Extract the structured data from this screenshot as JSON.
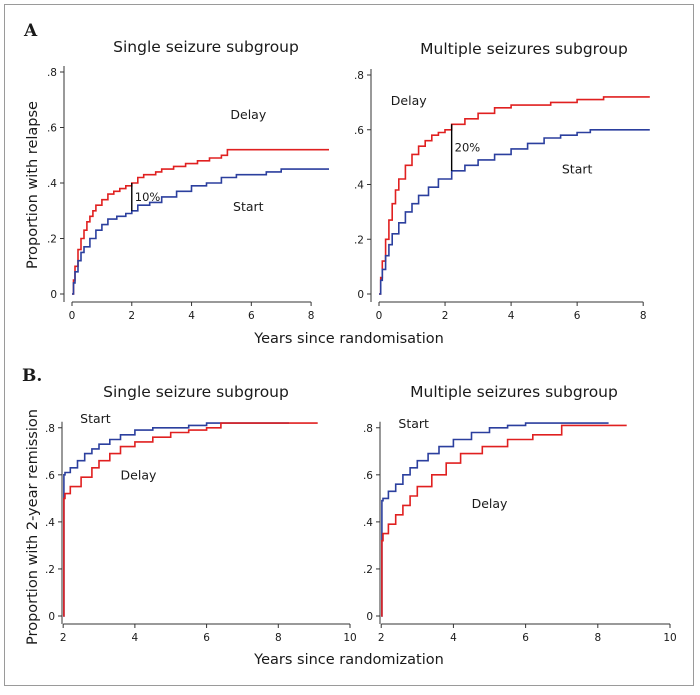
{
  "panels": [
    {
      "letter": "A",
      "ylabel": "Proportion with relapse",
      "xlabel": "Years since randomisation",
      "charts": [
        {
          "title": "Single seizure subgroup",
          "xticks": [
            "0",
            "2",
            "4",
            "6",
            "8"
          ],
          "yticks": [
            "0",
            ".2",
            ".4",
            ".6",
            ".8"
          ]
        },
        {
          "title": "Multiple seizures subgroup",
          "xticks": [
            "0",
            "2",
            "4",
            "6",
            "8"
          ],
          "yticks": [
            "0",
            ".2",
            ".4",
            ".6",
            ".8"
          ]
        }
      ]
    },
    {
      "letter": "B.",
      "ylabel": "Proportion with 2-year remission",
      "xlabel": "Years since randomization",
      "charts": [
        {
          "title": "Single seizure subgroup",
          "xticks": [
            "2",
            "4",
            "6",
            "8",
            "10"
          ],
          "yticks": [
            "0",
            ".2",
            ".4",
            ".6",
            ".8"
          ]
        },
        {
          "title": "Multiple seizures subgroup",
          "xticks": [
            "2",
            "4",
            "6",
            "8",
            "10"
          ],
          "yticks": [
            "0",
            ".2",
            ".4",
            ".6",
            ".8"
          ]
        }
      ]
    }
  ],
  "colors": {
    "start": "#2b3f9e",
    "delay": "#e02020",
    "axis": "#333333",
    "annotation": "#000000"
  },
  "chart_data": [
    {
      "type": "line",
      "title": "Single seizure subgroup",
      "xlabel": "Years since randomisation",
      "ylabel": "Proportion with relapse",
      "xlim": [
        0,
        8.8
      ],
      "ylim": [
        0,
        0.8
      ],
      "series": [
        {
          "name": "Delay",
          "color": "#e02020",
          "step": true,
          "x": [
            0,
            0.05,
            0.1,
            0.2,
            0.3,
            0.4,
            0.5,
            0.6,
            0.7,
            0.8,
            1.0,
            1.2,
            1.4,
            1.6,
            1.8,
            2.0,
            2.2,
            2.4,
            2.8,
            3.0,
            3.4,
            3.8,
            4.2,
            4.6,
            5.0,
            5.2,
            6.0,
            7.0,
            8.6
          ],
          "y": [
            0,
            0.05,
            0.1,
            0.16,
            0.2,
            0.23,
            0.26,
            0.28,
            0.3,
            0.32,
            0.34,
            0.36,
            0.37,
            0.38,
            0.39,
            0.4,
            0.42,
            0.43,
            0.44,
            0.45,
            0.46,
            0.47,
            0.48,
            0.49,
            0.5,
            0.52,
            0.52,
            0.52,
            0.52
          ]
        },
        {
          "name": "Start",
          "color": "#2b3f9e",
          "step": true,
          "x": [
            0,
            0.05,
            0.1,
            0.2,
            0.3,
            0.4,
            0.6,
            0.8,
            1.0,
            1.2,
            1.5,
            1.8,
            2.0,
            2.2,
            2.6,
            3.0,
            3.5,
            4.0,
            4.5,
            5.0,
            5.5,
            6.0,
            6.5,
            7.0,
            8.6
          ],
          "y": [
            0,
            0.04,
            0.08,
            0.12,
            0.15,
            0.17,
            0.2,
            0.23,
            0.25,
            0.27,
            0.28,
            0.29,
            0.3,
            0.32,
            0.33,
            0.35,
            0.37,
            0.39,
            0.4,
            0.42,
            0.43,
            0.43,
            0.44,
            0.45,
            0.45
          ]
        }
      ],
      "annotations": [
        {
          "text": "10%",
          "x": 2.0,
          "y_from": 0.3,
          "y_to": 0.4
        }
      ],
      "curve_labels": [
        {
          "text": "Delay",
          "x": 5.9,
          "y": 0.63
        },
        {
          "text": "Start",
          "x": 5.9,
          "y": 0.3
        }
      ]
    },
    {
      "type": "line",
      "title": "Multiple seizures subgroup",
      "xlabel": "Years since randomisation",
      "ylabel": "Proportion with relapse",
      "xlim": [
        0,
        8.6
      ],
      "ylim": [
        0,
        0.8
      ],
      "series": [
        {
          "name": "Delay",
          "color": "#e02020",
          "step": true,
          "x": [
            0,
            0.05,
            0.1,
            0.2,
            0.3,
            0.4,
            0.5,
            0.6,
            0.8,
            1.0,
            1.2,
            1.4,
            1.6,
            1.8,
            2.0,
            2.2,
            2.6,
            3.0,
            3.5,
            4.0,
            4.6,
            5.2,
            6.0,
            6.8,
            8.2
          ],
          "y": [
            0,
            0.06,
            0.12,
            0.2,
            0.27,
            0.33,
            0.38,
            0.42,
            0.47,
            0.51,
            0.54,
            0.56,
            0.58,
            0.59,
            0.6,
            0.62,
            0.64,
            0.66,
            0.68,
            0.69,
            0.69,
            0.7,
            0.71,
            0.72,
            0.72
          ]
        },
        {
          "name": "Start",
          "color": "#2b3f9e",
          "step": true,
          "x": [
            0,
            0.05,
            0.1,
            0.2,
            0.3,
            0.4,
            0.6,
            0.8,
            1.0,
            1.2,
            1.5,
            1.8,
            2.2,
            2.6,
            3.0,
            3.5,
            4.0,
            4.5,
            5.0,
            5.5,
            6.0,
            6.4,
            8.2
          ],
          "y": [
            0,
            0.05,
            0.09,
            0.14,
            0.18,
            0.22,
            0.26,
            0.3,
            0.33,
            0.36,
            0.39,
            0.42,
            0.45,
            0.47,
            0.49,
            0.51,
            0.53,
            0.55,
            0.57,
            0.58,
            0.59,
            0.6,
            0.6
          ]
        }
      ],
      "annotations": [
        {
          "text": "20%",
          "x": 2.2,
          "y_from": 0.45,
          "y_to": 0.62
        }
      ],
      "curve_labels": [
        {
          "text": "Delay",
          "x": 0.9,
          "y": 0.69
        },
        {
          "text": "Start",
          "x": 6.0,
          "y": 0.44
        }
      ]
    },
    {
      "type": "line",
      "title": "Single seizure subgroup",
      "xlabel": "Years since randomization",
      "ylabel": "Proportion with 2-year remission",
      "xlim": [
        1.8,
        10
      ],
      "ylim": [
        0,
        0.85
      ],
      "series": [
        {
          "name": "Start",
          "color": "#2b3f9e",
          "step": true,
          "x": [
            2.0,
            2.02,
            2.05,
            2.2,
            2.4,
            2.6,
            2.8,
            3.0,
            3.3,
            3.6,
            4.0,
            4.5,
            5.0,
            5.5,
            6.0,
            8.3
          ],
          "y": [
            0,
            0.6,
            0.61,
            0.63,
            0.66,
            0.69,
            0.71,
            0.73,
            0.75,
            0.77,
            0.79,
            0.8,
            0.8,
            0.81,
            0.82,
            0.82
          ]
        },
        {
          "name": "Delay",
          "color": "#e02020",
          "step": true,
          "x": [
            2.0,
            2.02,
            2.05,
            2.2,
            2.5,
            2.8,
            3.0,
            3.3,
            3.6,
            4.0,
            4.5,
            5.0,
            5.5,
            6.0,
            6.4,
            9.1
          ],
          "y": [
            0,
            0.5,
            0.52,
            0.55,
            0.59,
            0.63,
            0.66,
            0.69,
            0.72,
            0.74,
            0.76,
            0.78,
            0.79,
            0.8,
            0.82,
            0.82
          ]
        }
      ],
      "curve_labels": [
        {
          "text": "Start",
          "x": 2.9,
          "y": 0.82
        },
        {
          "text": "Delay",
          "x": 4.1,
          "y": 0.58
        }
      ]
    },
    {
      "type": "line",
      "title": "Multiple seizures subgroup",
      "xlabel": "Years since randomization",
      "ylabel": "Proportion with 2-year remission",
      "xlim": [
        1.8,
        10
      ],
      "ylim": [
        0,
        0.85
      ],
      "series": [
        {
          "name": "Start",
          "color": "#2b3f9e",
          "step": true,
          "x": [
            2.0,
            2.02,
            2.05,
            2.2,
            2.4,
            2.6,
            2.8,
            3.0,
            3.3,
            3.6,
            4.0,
            4.5,
            5.0,
            5.5,
            6.0,
            8.3
          ],
          "y": [
            0,
            0.49,
            0.5,
            0.53,
            0.56,
            0.6,
            0.63,
            0.66,
            0.69,
            0.72,
            0.75,
            0.78,
            0.8,
            0.81,
            0.82,
            0.82
          ]
        },
        {
          "name": "Delay",
          "color": "#e02020",
          "step": true,
          "x": [
            2.0,
            2.02,
            2.05,
            2.2,
            2.4,
            2.6,
            2.8,
            3.0,
            3.4,
            3.8,
            4.2,
            4.8,
            5.5,
            6.2,
            7.0,
            8.8
          ],
          "y": [
            0,
            0.32,
            0.35,
            0.39,
            0.43,
            0.47,
            0.51,
            0.55,
            0.6,
            0.65,
            0.69,
            0.72,
            0.75,
            0.77,
            0.81,
            0.81
          ]
        }
      ],
      "curve_labels": [
        {
          "text": "Start",
          "x": 2.9,
          "y": 0.8
        },
        {
          "text": "Delay",
          "x": 5.0,
          "y": 0.46
        }
      ]
    }
  ]
}
